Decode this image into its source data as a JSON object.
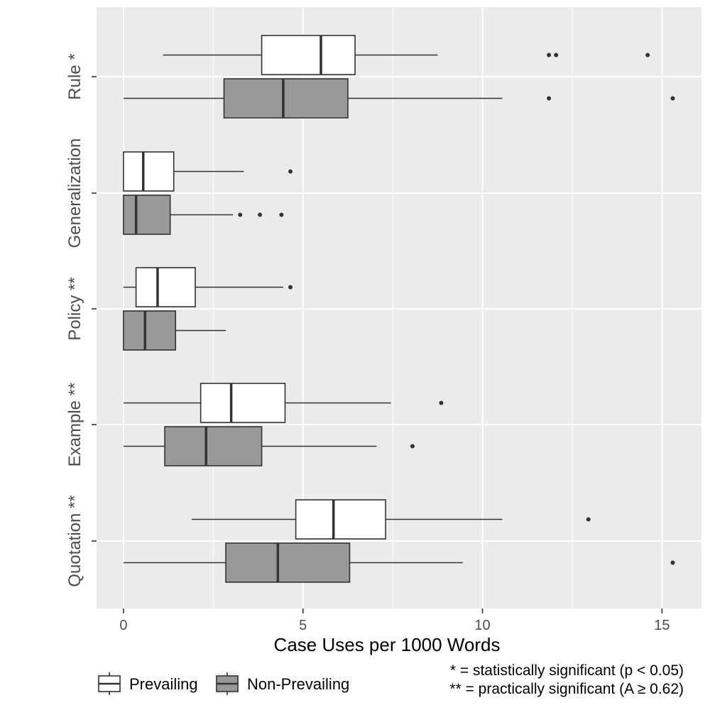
{
  "chart_data": {
    "type": "boxplot",
    "orientation": "horizontal",
    "xlabel": "Case Uses per 1000 Words",
    "xlim": [
      -0.75,
      16.1
    ],
    "xticks": [
      0,
      5,
      10,
      15
    ],
    "grid": true,
    "categories": [
      "Rule *",
      "Generalization",
      "Policy **",
      "Example **",
      "Quotation **"
    ],
    "series": [
      {
        "name": "Prevailing",
        "fill": "#ffffff",
        "boxes": [
          {
            "category": "Rule *",
            "whisker_low": 1.1,
            "q1": 3.85,
            "median": 5.5,
            "q3": 6.45,
            "whisker_high": 8.75,
            "outliers": [
              11.85,
              12.05,
              14.6
            ]
          },
          {
            "category": "Generalization",
            "whisker_low": 0.0,
            "q1": 0.0,
            "median": 0.55,
            "q3": 1.4,
            "whisker_high": 3.35,
            "outliers": [
              4.65
            ]
          },
          {
            "category": "Policy **",
            "whisker_low": 0.0,
            "q1": 0.35,
            "median": 0.95,
            "q3": 2.0,
            "whisker_high": 4.45,
            "outliers": [
              4.65
            ]
          },
          {
            "category": "Example **",
            "whisker_low": 0.0,
            "q1": 2.15,
            "median": 3.0,
            "q3": 4.5,
            "whisker_high": 7.45,
            "outliers": [
              8.85
            ]
          },
          {
            "category": "Quotation **",
            "whisker_low": 1.9,
            "q1": 4.8,
            "median": 5.85,
            "q3": 7.3,
            "whisker_high": 10.55,
            "outliers": [
              12.95
            ]
          }
        ]
      },
      {
        "name": "Non-Prevailing",
        "fill": "#999999",
        "boxes": [
          {
            "category": "Rule *",
            "whisker_low": 0.0,
            "q1": 2.8,
            "median": 4.45,
            "q3": 6.25,
            "whisker_high": 10.55,
            "outliers": [
              11.85,
              15.3
            ]
          },
          {
            "category": "Generalization",
            "whisker_low": 0.0,
            "q1": 0.0,
            "median": 0.35,
            "q3": 1.3,
            "whisker_high": 3.05,
            "outliers": [
              3.25,
              3.8,
              4.4
            ]
          },
          {
            "category": "Policy **",
            "whisker_low": 0.0,
            "q1": 0.0,
            "median": 0.6,
            "q3": 1.45,
            "whisker_high": 2.85,
            "outliers": []
          },
          {
            "category": "Example **",
            "whisker_low": 0.0,
            "q1": 1.15,
            "median": 2.3,
            "q3": 3.85,
            "whisker_high": 7.05,
            "outliers": [
              8.05
            ]
          },
          {
            "category": "Quotation **",
            "whisker_low": 0.0,
            "q1": 2.85,
            "median": 4.3,
            "q3": 6.3,
            "whisker_high": 9.45,
            "outliers": [
              15.3
            ]
          }
        ]
      }
    ],
    "legend": {
      "position": "bottom-left",
      "labels": [
        "Prevailing",
        "Non-Prevailing"
      ]
    },
    "notes": [
      "* = statistically significant (p < 0.05)",
      "** = practically significant (A ≥ 0.62)"
    ],
    "colors": {
      "panel": "#ebebeb",
      "grid": "#ffffff",
      "box_line": "#333333",
      "axis_text": "#4d4d4d"
    }
  }
}
